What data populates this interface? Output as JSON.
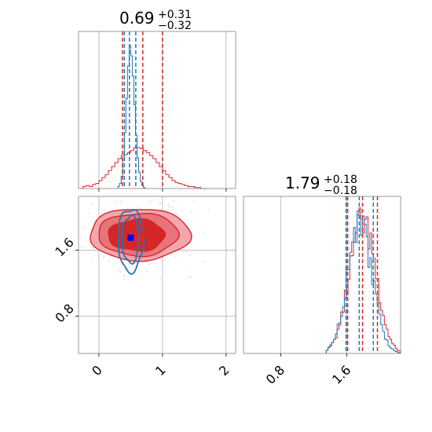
{
  "chart_data": {
    "type": "corner",
    "colors": {
      "red": "#d62728",
      "blue": "#1f77b4"
    },
    "series": [
      {
        "name": "",
        "color": "#d62728"
      },
      {
        "name": "",
        "color": "#1f77b4"
      }
    ],
    "panels": {
      "top_hist": {
        "title_main": "0.69",
        "title_plus": "+0.31",
        "title_minus": "−0.32",
        "xlim": [
          -0.32,
          2.15
        ],
        "red_hist": {
          "bins": [
            -0.3,
            -0.25,
            -0.2,
            -0.15,
            -0.1,
            -0.05,
            0.0,
            0.05,
            0.1,
            0.15,
            0.2,
            0.25,
            0.3,
            0.35,
            0.4,
            0.45,
            0.5,
            0.55,
            0.6,
            0.65,
            0.7,
            0.75,
            0.8,
            0.85,
            0.9,
            0.95,
            1.0,
            1.05,
            1.1,
            1.15,
            1.2,
            1.25,
            1.3,
            1.35,
            1.4,
            1.45,
            1.5,
            1.55,
            1.6,
            1.65,
            1.7
          ],
          "values": [
            0,
            2,
            3,
            2,
            4,
            5,
            8,
            11,
            14,
            18,
            22,
            26,
            30,
            33,
            34,
            36,
            38,
            41,
            41,
            40,
            38,
            36,
            33,
            30,
            26,
            22,
            18,
            14,
            11,
            8,
            6,
            5,
            4,
            3,
            2,
            2,
            1,
            1,
            0,
            0
          ]
        },
        "blue_hist": {
          "bins": [
            0.3,
            0.325,
            0.35,
            0.375,
            0.4,
            0.425,
            0.45,
            0.475,
            0.5,
            0.525,
            0.55,
            0.575,
            0.6,
            0.625,
            0.65,
            0.675,
            0.7,
            0.725,
            0.75
          ],
          "values": [
            2,
            5,
            12,
            28,
            55,
            88,
            120,
            140,
            130,
            110,
            82,
            52,
            30,
            16,
            7,
            3,
            1,
            0
          ]
        },
        "red_quantiles": [
          0.37,
          0.69,
          1.0
        ],
        "blue_quantiles": [
          0.4,
          0.48,
          0.58
        ]
      },
      "joint": {
        "xlim": [
          -0.32,
          2.15
        ],
        "ylim": [
          0.35,
          2.25
        ],
        "yticks": [
          0.8,
          1.6
        ],
        "yticklabels": [
          "0.8",
          "1.6"
        ],
        "xticks": [
          0,
          1,
          2
        ],
        "xticklabels": [
          "0",
          "1",
          "2"
        ],
        "red_marker": [
          0.69,
          1.79
        ],
        "blue_marker": [
          0.5,
          1.75
        ]
      },
      "right_hist": {
        "title_main": "1.79",
        "title_plus": "+0.18",
        "title_minus": "−0.18",
        "xlim": [
          0.35,
          2.25
        ],
        "xticks": [
          0.8,
          1.6
        ],
        "xticklabels": [
          "0.8",
          "1.6"
        ],
        "red_quantiles": [
          1.61,
          1.79,
          1.97
        ],
        "blue_quantiles": [
          1.59,
          1.75,
          1.92
        ]
      }
    }
  }
}
